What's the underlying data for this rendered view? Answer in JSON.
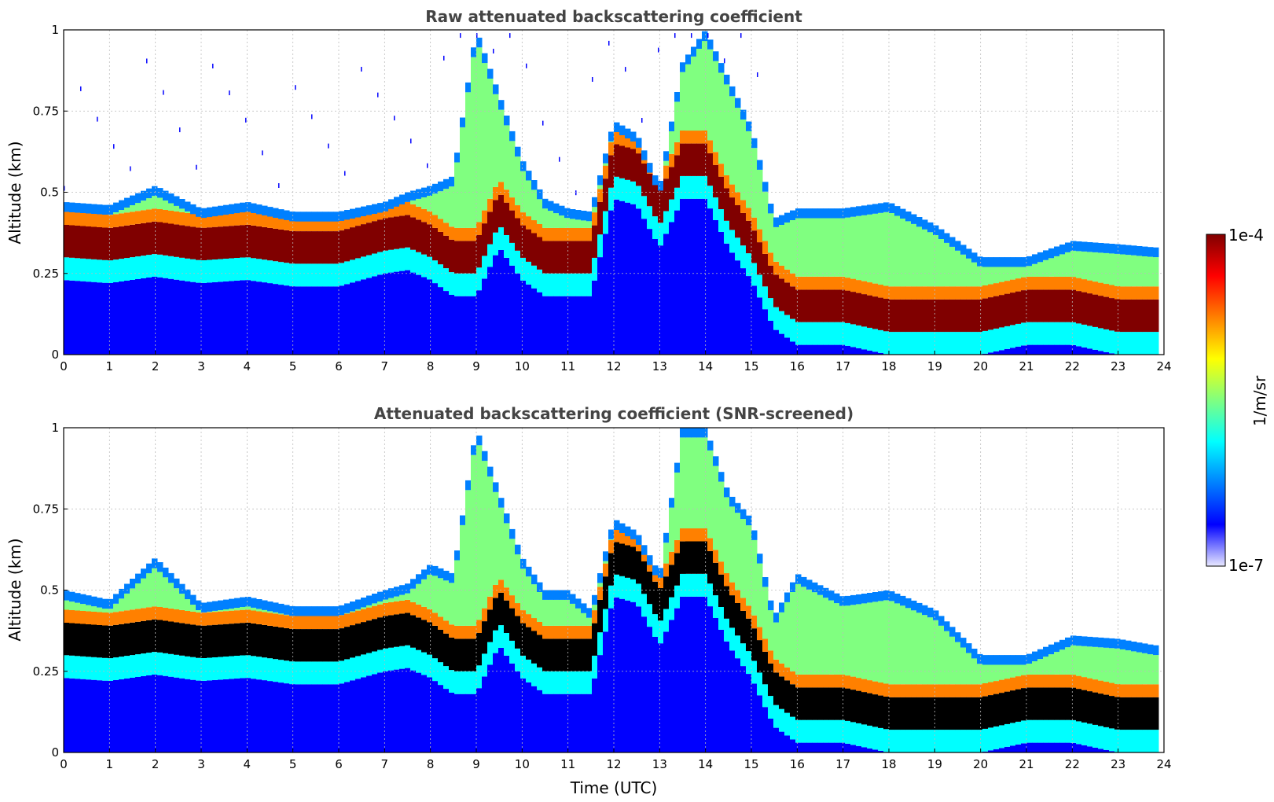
{
  "colors": {
    "jet": [
      "#e8e8ff",
      "#0000ff",
      "#0080ff",
      "#00ffff",
      "#80ff80",
      "#ffff00",
      "#ff8000",
      "#ff0000",
      "#800000"
    ],
    "clipped": "#000000",
    "grid": "#bbbbbb"
  },
  "colorbar": {
    "label": "1/m/sr",
    "max_label": "1e-4",
    "min_label": "1e-7",
    "scale": "log"
  },
  "chart_data": [
    {
      "type": "heatmap",
      "title": "Raw attenuated backscattering coefficient",
      "xlabel": "",
      "ylabel": "Altitude (km)",
      "xlim": [
        0,
        24
      ],
      "ylim": [
        0,
        1
      ],
      "xticks": [
        "0",
        "1",
        "2",
        "3",
        "4",
        "5",
        "6",
        "7",
        "8",
        "9",
        "10",
        "11",
        "12",
        "13",
        "14",
        "15",
        "16",
        "17",
        "18",
        "19",
        "20",
        "21",
        "22",
        "23",
        "24"
      ],
      "yticks": [
        "0",
        "0.25",
        "0.5",
        "0.75",
        "1"
      ],
      "grid": true,
      "screened": false,
      "layer_profile": {
        "time_h": [
          0,
          1,
          2,
          3,
          4,
          5,
          6,
          7,
          7.5,
          8,
          8.5,
          9,
          9.5,
          10,
          10.5,
          11,
          11.5,
          12,
          12.5,
          13,
          13.5,
          14,
          14.5,
          15,
          15.5,
          16,
          17,
          18,
          19,
          20,
          21,
          22,
          23,
          23.8
        ],
        "top_km": [
          0.47,
          0.46,
          0.52,
          0.45,
          0.47,
          0.44,
          0.44,
          0.47,
          0.5,
          0.52,
          0.55,
          1.0,
          0.8,
          0.6,
          0.48,
          0.45,
          0.44,
          0.72,
          0.68,
          0.52,
          0.9,
          1.0,
          0.85,
          0.7,
          0.42,
          0.45,
          0.45,
          0.47,
          0.4,
          0.3,
          0.3,
          0.35,
          0.34,
          0.33
        ],
        "core_km": [
          0.35,
          0.34,
          0.36,
          0.34,
          0.35,
          0.33,
          0.33,
          0.37,
          0.38,
          0.35,
          0.3,
          0.3,
          0.45,
          0.35,
          0.3,
          0.3,
          0.3,
          0.6,
          0.58,
          0.45,
          0.6,
          0.6,
          0.45,
          0.35,
          0.2,
          0.15,
          0.15,
          0.12,
          0.12,
          0.12,
          0.15,
          0.15,
          0.12,
          0.12
        ]
      }
    },
    {
      "type": "heatmap",
      "title": "Attenuated backscattering coefficient (SNR-screened)",
      "xlabel": "Time (UTC)",
      "ylabel": "Altitude (km)",
      "xlim": [
        0,
        24
      ],
      "ylim": [
        0,
        1
      ],
      "xticks": [
        "0",
        "1",
        "2",
        "3",
        "4",
        "5",
        "6",
        "7",
        "8",
        "9",
        "10",
        "11",
        "12",
        "13",
        "14",
        "15",
        "16",
        "17",
        "18",
        "19",
        "20",
        "21",
        "22",
        "23",
        "24"
      ],
      "yticks": [
        "0",
        "0.25",
        "0.5",
        "0.75",
        "1"
      ],
      "grid": true,
      "screened": true,
      "layer_profile": {
        "time_h": [
          0,
          1,
          2,
          3,
          4,
          5,
          6,
          7,
          7.5,
          8,
          8.5,
          9,
          9.5,
          10,
          10.5,
          11,
          11.5,
          12,
          12.5,
          13,
          13.5,
          14,
          14.5,
          15,
          15.5,
          16,
          17,
          18,
          19,
          20,
          21,
          22,
          23,
          23.8
        ],
        "top_km": [
          0.5,
          0.47,
          0.6,
          0.46,
          0.48,
          0.45,
          0.45,
          0.5,
          0.52,
          0.58,
          0.55,
          1.0,
          0.8,
          0.6,
          0.5,
          0.5,
          0.44,
          0.72,
          0.68,
          0.55,
          1.0,
          1.0,
          0.8,
          0.72,
          0.42,
          0.55,
          0.48,
          0.5,
          0.44,
          0.3,
          0.3,
          0.36,
          0.35,
          0.33
        ],
        "core_km": [
          0.35,
          0.34,
          0.36,
          0.34,
          0.35,
          0.33,
          0.33,
          0.37,
          0.38,
          0.35,
          0.3,
          0.3,
          0.45,
          0.35,
          0.3,
          0.3,
          0.3,
          0.6,
          0.58,
          0.45,
          0.6,
          0.6,
          0.45,
          0.35,
          0.2,
          0.15,
          0.15,
          0.12,
          0.12,
          0.12,
          0.15,
          0.15,
          0.12,
          0.12
        ]
      }
    }
  ]
}
